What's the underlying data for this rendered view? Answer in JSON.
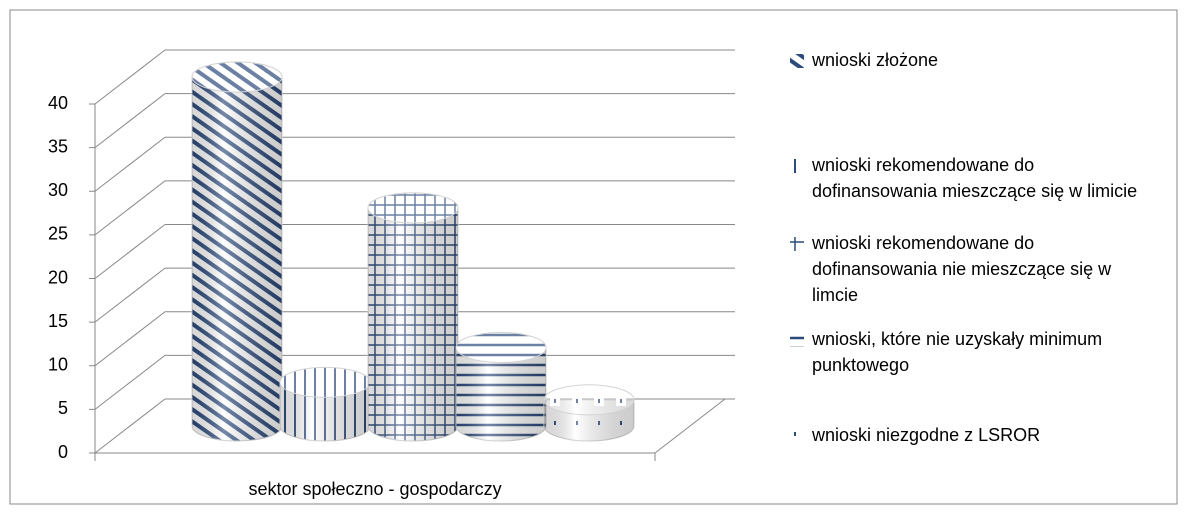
{
  "chart_data": {
    "type": "bar3d",
    "categories": [
      "sektor społeczno - gospodarczy"
    ],
    "series": [
      {
        "name": "wnioski złożone",
        "color": "#2c4a7c",
        "pattern": "diagonal",
        "values": [
          40
        ]
      },
      {
        "name": "wnioski rekomendowane do dofinansowania mieszczące się w limicie",
        "color": "#2c4a7c",
        "pattern": "vertical",
        "values": [
          5
        ]
      },
      {
        "name": "wnioski rekomendowane do dofinansowania nie mieszczące się w limcie",
        "color": "#2c4a7c",
        "pattern": "grid",
        "values": [
          25
        ]
      },
      {
        "name": "wnioski, które nie uzyskały minimum punktowego",
        "color": "#2c4a7c",
        "pattern": "horizontal",
        "values": [
          9
        ]
      },
      {
        "name": "wnioski niezgodne z LSROR",
        "color": "#2c4a7c",
        "pattern": "dots",
        "values": [
          3
        ]
      }
    ],
    "ylim": [
      0,
      40
    ],
    "yticks": [
      0,
      5,
      10,
      15,
      20,
      25,
      30,
      35,
      40
    ],
    "grid": true,
    "legend": "right"
  }
}
